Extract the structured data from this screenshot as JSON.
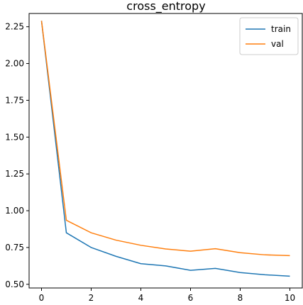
{
  "chart_data": {
    "type": "line",
    "title": "cross_entropy",
    "xlabel": "",
    "ylabel": "",
    "xlim": [
      -0.5,
      10.5
    ],
    "ylim": [
      0.475,
      2.34
    ],
    "x_ticks": [
      0,
      2,
      4,
      6,
      8,
      10
    ],
    "y_ticks": [
      0.5,
      0.75,
      1.0,
      1.25,
      1.5,
      1.75,
      2.0,
      2.25
    ],
    "y_tick_labels": [
      "0.50",
      "0.75",
      "1.00",
      "1.25",
      "1.50",
      "1.75",
      "2.00",
      "2.25"
    ],
    "grid": false,
    "legend_position": "top-right",
    "x": [
      0,
      1,
      2,
      3,
      4,
      5,
      6,
      7,
      8,
      9,
      10
    ],
    "series": [
      {
        "name": "train",
        "color": "#1f77b4",
        "values": [
          2.29,
          0.85,
          0.75,
          0.69,
          0.64,
          0.625,
          0.595,
          0.608,
          0.58,
          0.565,
          0.555
        ]
      },
      {
        "name": "val",
        "color": "#ff7f0e",
        "values": [
          2.29,
          0.935,
          0.85,
          0.8,
          0.765,
          0.74,
          0.725,
          0.742,
          0.715,
          0.7,
          0.695
        ]
      }
    ]
  }
}
